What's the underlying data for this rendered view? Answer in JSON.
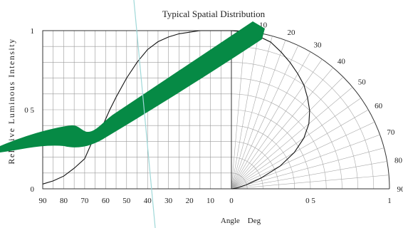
{
  "chart_data": {
    "type": "line",
    "title": "Typical Spatial Distribution",
    "xlabel": "Angle    Deg",
    "ylabel": "Relative Luminous Intensity",
    "y_ticks": [
      "0",
      "0 5",
      "1"
    ],
    "x_ticks_left": [
      "90",
      "80",
      "70",
      "60",
      "50",
      "40",
      "30",
      "20",
      "10",
      "0"
    ],
    "x_ticks_right": [
      "0",
      "0 5",
      "1"
    ],
    "polar_angle_labels": [
      "10",
      "20",
      "30",
      "40",
      "50",
      "60",
      "70",
      "80",
      "90"
    ],
    "xlim_left_deg": [
      90,
      0
    ],
    "ylim": [
      0,
      1
    ],
    "grid": true,
    "series": [
      {
        "role": "intensity-vs-angle",
        "x_deg": [
          90,
          85,
          80,
          75,
          70,
          67,
          62,
          58,
          55,
          50,
          45,
          40,
          35,
          30,
          25,
          20,
          15,
          10,
          5,
          0
        ],
        "y": [
          0.03,
          0.05,
          0.08,
          0.13,
          0.19,
          0.28,
          0.38,
          0.5,
          0.58,
          0.7,
          0.8,
          0.88,
          0.93,
          0.96,
          0.98,
          0.99,
          1.0,
          1.0,
          1.0,
          1.0
        ]
      },
      {
        "role": "polar-pattern",
        "angle_deg": [
          0,
          5,
          10,
          15,
          20,
          25,
          30,
          35,
          40,
          45,
          50,
          55,
          60,
          65,
          70,
          75,
          80,
          85,
          90
        ],
        "r": [
          1.0,
          0.995,
          0.98,
          0.96,
          0.92,
          0.88,
          0.84,
          0.8,
          0.75,
          0.7,
          0.64,
          0.56,
          0.46,
          0.34,
          0.2,
          0.1,
          0.04,
          0.01,
          0.0
        ]
      }
    ],
    "overlay_colors": {
      "green_band": "#068a45",
      "thin_line": "#9fd8d8"
    }
  }
}
